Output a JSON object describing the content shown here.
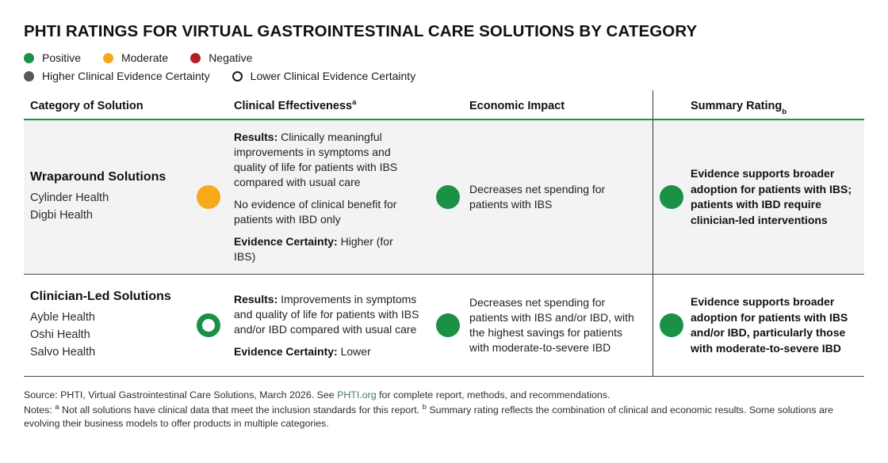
{
  "title": "PHTI RATINGS FOR VIRTUAL GASTROINTESTINAL CARE SOLUTIONS BY CATEGORY",
  "colors": {
    "positive": "#1B9146",
    "moderate": "#F7A81B",
    "negative": "#B11F29",
    "higher_certainty_dot": "#58595B",
    "header_rule": "#1B9146",
    "row_alt_background": "#F3F3F3",
    "link": "#40796C"
  },
  "legend": {
    "ratings": [
      {
        "label": "Positive",
        "color": "#1B9146"
      },
      {
        "label": "Moderate",
        "color": "#F7A81B"
      },
      {
        "label": "Negative",
        "color": "#B11F29"
      }
    ],
    "certainty": [
      {
        "label": "Higher Clinical Evidence Certainty",
        "style": "filled",
        "color": "#58595B"
      },
      {
        "label": "Lower Clinical Evidence Certainty",
        "style": "ring"
      }
    ]
  },
  "table": {
    "headers": {
      "category": "Category of Solution",
      "clinical": "Clinical Effectiveness",
      "clinical_sup": "a",
      "economic": "Economic Impact",
      "summary": "Summary Rating",
      "summary_sup": "b"
    },
    "rows": [
      {
        "category_title": "Wraparound Solutions",
        "companies": [
          "Cylinder Health",
          "Digbi Health"
        ],
        "clinical": {
          "rating": "moderate",
          "certainty": "higher",
          "paragraphs": [
            {
              "label": "Results:",
              "text": " Clinically meaningful improvements in symptoms and quality of life for patients with IBS compared with usual care"
            },
            {
              "label": "",
              "text": "No evidence of clinical benefit for patients with IBD only"
            },
            {
              "label": "Evidence Certainty:",
              "text": " Higher (for IBS)"
            }
          ]
        },
        "economic": {
          "rating": "positive",
          "certainty": "higher",
          "text": "Decreases net spending for patients with IBS"
        },
        "summary": {
          "rating": "positive",
          "certainty": "higher",
          "text": "Evidence supports broader adoption for patients with IBS; patients with IBD require clinician-led interventions"
        }
      },
      {
        "category_title": "Clinician-Led Solutions",
        "companies": [
          "Ayble Health",
          "Oshi Health",
          "Salvo Health"
        ],
        "clinical": {
          "rating": "positive",
          "certainty": "lower",
          "paragraphs": [
            {
              "label": "Results:",
              "text": " Improvements in symptoms and quality of life for patients with IBS and/or IBD compared with usual care"
            },
            {
              "label": "Evidence Certainty:",
              "text": " Lower"
            }
          ]
        },
        "economic": {
          "rating": "positive",
          "certainty": "higher",
          "text": "Decreases net spending for patients with IBS and/or IBD, with the highest savings for patients with moderate-to-severe IBD"
        },
        "summary": {
          "rating": "positive",
          "certainty": "higher",
          "text": "Evidence supports broader adoption for patients with IBS and/or IBD, particularly those with moderate-to-severe IBD"
        }
      }
    ]
  },
  "footer": {
    "source_prefix": "Source: PHTI, Virtual Gastrointestinal Care Solutions, March 2026. See ",
    "source_link": "PHTI.org",
    "source_suffix": " for complete report, methods, and recommendations.",
    "notes_label": "Notes: ",
    "note_a_sup": "a",
    "note_a_text": " Not all solutions have clinical data that meet the inclusion standards for this report. ",
    "note_b_sup": "b",
    "note_b_text": " Summary rating reflects the combination of clinical and economic results. Some solutions are evolving their business models to offer products in multiple categories."
  }
}
